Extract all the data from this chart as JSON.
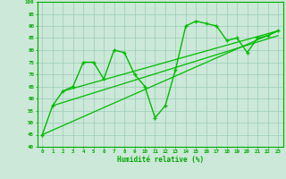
{
  "xlabel": "Humidité relative (%)",
  "x_data": [
    0,
    1,
    2,
    3,
    4,
    5,
    6,
    7,
    8,
    9,
    10,
    11,
    12,
    13,
    14,
    15,
    16,
    17,
    18,
    19,
    20,
    21,
    22,
    23
  ],
  "y_main": [
    45,
    57,
    63,
    65,
    75,
    75,
    68,
    80,
    79,
    70,
    65,
    52,
    57,
    72,
    90,
    92,
    91,
    90,
    84,
    85,
    79,
    85,
    86,
    88
  ],
  "line_color": "#00bb00",
  "bg_color": "#cce8d8",
  "grid_color": "#99ccbb",
  "tick_color": "#00aa00",
  "label_color": "#00aa00",
  "ylim_min": 40,
  "ylim_max": 100,
  "xlim_min": -0.5,
  "xlim_max": 23.5,
  "yticks": [
    40,
    45,
    50,
    55,
    60,
    65,
    70,
    75,
    80,
    85,
    90,
    95,
    100
  ],
  "reg_lines": [
    {
      "x0": 0,
      "y0": 45,
      "x1": 23,
      "y1": 88
    },
    {
      "x0": 1,
      "y0": 57,
      "x1": 23,
      "y1": 86
    },
    {
      "x0": 2,
      "y0": 63,
      "x1": 23,
      "y1": 88
    }
  ]
}
